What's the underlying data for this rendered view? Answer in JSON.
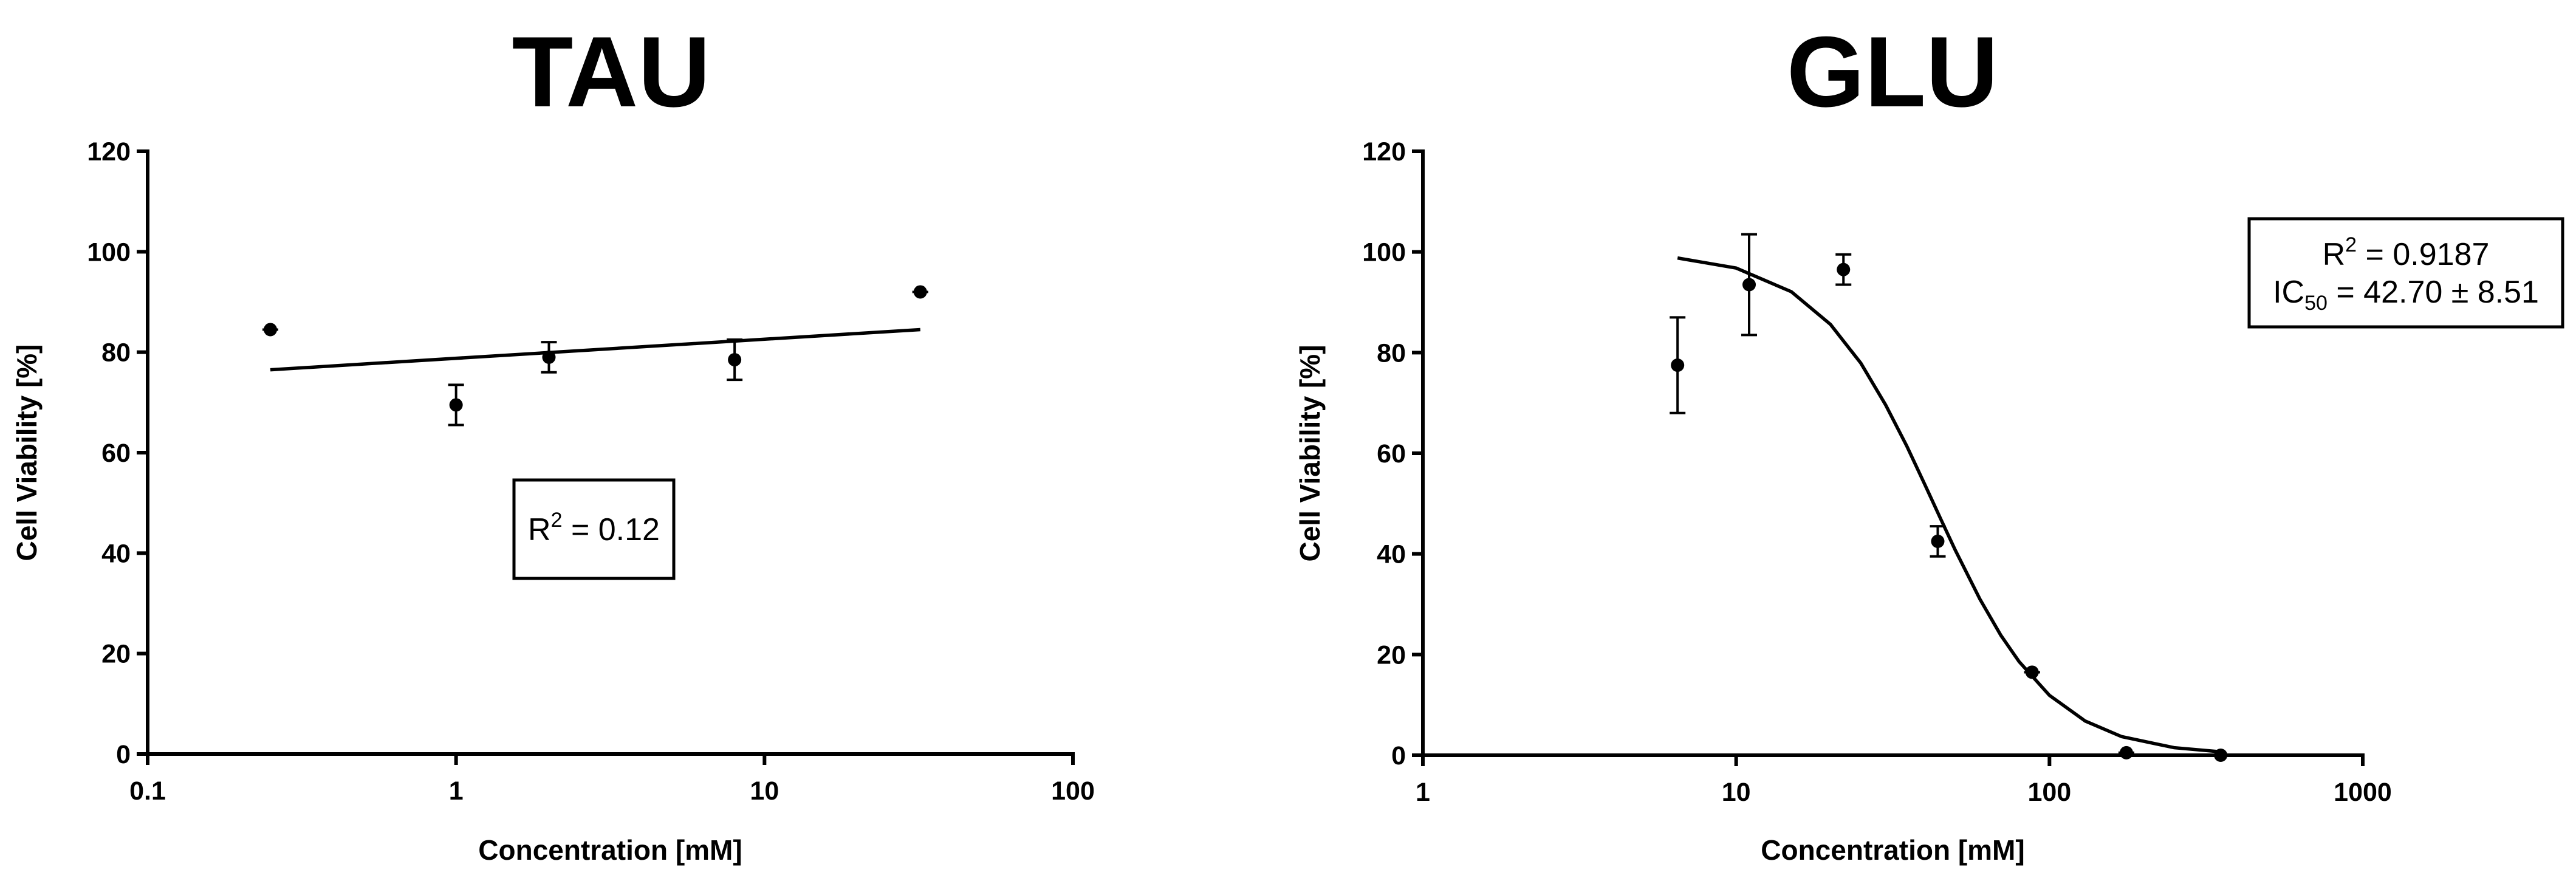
{
  "chart_data": [
    {
      "type": "scatter",
      "title": "TAU",
      "x_label": "Concentration [mM]",
      "y_label": "Cell Viability [%]",
      "log_x": true,
      "xlim": [
        0.1,
        100
      ],
      "xticks": [
        0.1,
        1,
        10,
        100
      ],
      "ylim": [
        0,
        120
      ],
      "yticks": [
        0,
        20,
        40,
        60,
        80,
        100,
        120
      ],
      "color": "#000000",
      "series": [
        {
          "type": "scatter",
          "x": [
            0.25,
            1,
            2,
            8,
            32
          ],
          "values": [
            84.5,
            69.5,
            79,
            78.5,
            92
          ],
          "errors": [
            0,
            4,
            3,
            4,
            0
          ]
        },
        {
          "type": "line",
          "x": [
            0.25,
            32
          ],
          "values": [
            76.5,
            84.5
          ]
        }
      ],
      "annotation": [
        {
          "text": "R",
          "sup": "2",
          "rest": " = 0.12"
        }
      ]
    },
    {
      "type": "scatter",
      "title": "GLU",
      "x_label": "Concentration [mM]",
      "y_label": "Cell Viability [%]",
      "log_x": true,
      "xlim": [
        1,
        1000
      ],
      "xticks": [
        1,
        10,
        100,
        1000
      ],
      "ylim": [
        0,
        120
      ],
      "yticks": [
        0,
        20,
        40,
        60,
        80,
        100,
        120
      ],
      "color": "#000000",
      "series": [
        {
          "type": "scatter",
          "x": [
            6.5,
            11,
            22,
            44,
            88,
            176,
            352
          ],
          "values": [
            77.5,
            93.5,
            96.5,
            42.5,
            16.5,
            0.5,
            0
          ],
          "errors": [
            9.5,
            10,
            3,
            3,
            0,
            0,
            0
          ]
        },
        {
          "type": "line",
          "x": [
            6.5,
            10,
            15,
            20,
            25,
            30,
            35,
            40,
            45,
            50,
            60,
            70,
            80,
            100,
            130,
            170,
            250,
            350
          ],
          "values": [
            98.8,
            96.8,
            92.1,
            85.6,
            77.9,
            69.6,
            61.5,
            53.8,
            46.9,
            40.8,
            31.0,
            23.8,
            18.6,
            11.9,
            6.8,
            3.7,
            1.5,
            0.7
          ]
        }
      ],
      "annotation": [
        {
          "text": "R",
          "sup": "2",
          "rest": " = 0.9187"
        },
        {
          "text": "IC",
          "sub": "50",
          "rest": " = 42.70 ± 8.51"
        }
      ]
    }
  ]
}
